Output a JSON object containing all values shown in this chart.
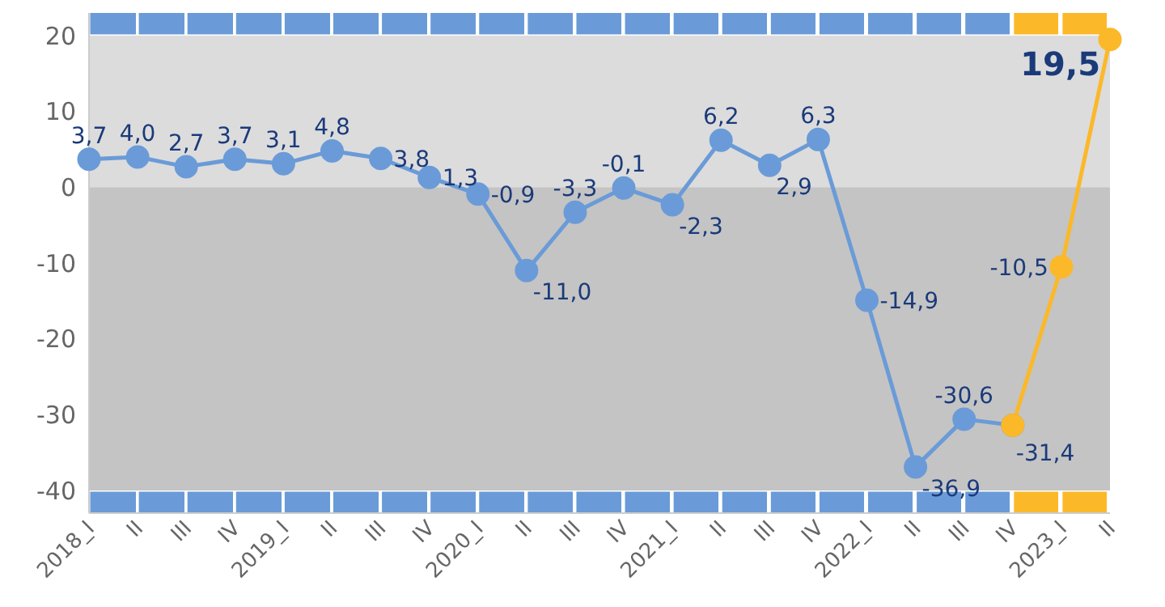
{
  "chart_data": {
    "type": "line",
    "categories": [
      "2018_I",
      "II",
      "III",
      "IV",
      "2019_I",
      "II",
      "III",
      "IV",
      "2020_I",
      "II",
      "III",
      "IV",
      "2021_I",
      "II",
      "III",
      "IV",
      "2022_I",
      "II",
      "III",
      "IV",
      "2023_I",
      "II"
    ],
    "series": [
      {
        "color": "#6a9bd8",
        "values": [
          3.7,
          4.0,
          2.7,
          3.7,
          3.1,
          4.8,
          3.8,
          1.3,
          -0.9,
          -11.0,
          -3.3,
          -0.1,
          -2.3,
          6.2,
          2.9,
          6.3,
          -14.9,
          -36.9,
          -30.6,
          -31.4,
          null,
          null
        ],
        "value_labels": [
          "3,7",
          "4,0",
          "2,7",
          "3,7",
          "3,1",
          "4,8",
          "3,8",
          "1,3",
          "-0,9",
          "-11,0",
          "-3,3",
          "-0,1",
          "-2,3",
          "6,2",
          "2,9",
          "6,3",
          "-14,9",
          "-36,9",
          "-30,6",
          "-31,4",
          null,
          null
        ]
      },
      {
        "color": "#fbb829",
        "values": [
          null,
          null,
          null,
          null,
          null,
          null,
          null,
          null,
          null,
          null,
          null,
          null,
          null,
          null,
          null,
          null,
          null,
          null,
          null,
          -31.4,
          -10.5,
          19.5
        ],
        "value_labels": [
          null,
          null,
          null,
          null,
          null,
          null,
          null,
          null,
          null,
          null,
          null,
          null,
          null,
          null,
          null,
          null,
          null,
          null,
          null,
          null,
          "-10,5",
          "19,5"
        ]
      }
    ],
    "ylim": [
      -43,
      23
    ],
    "yticks": [
      -40,
      -30,
      -20,
      -10,
      0,
      10,
      20
    ],
    "bands": [
      {
        "axis": "y",
        "from": 0,
        "to": 20,
        "color": "#dcdcdc"
      },
      {
        "axis": "y",
        "from": -40,
        "to": 0,
        "color": "#c4c4c4"
      }
    ],
    "grid": true,
    "marker": "circle",
    "line_style": "solid"
  }
}
